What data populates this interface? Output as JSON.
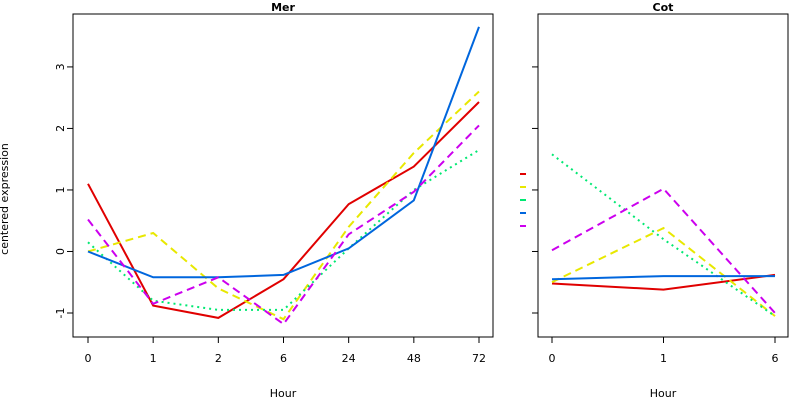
{
  "chart_data": {
    "type": "line",
    "ylabel": "centered expression",
    "ylim": [
      -1.35,
      3.85
    ],
    "yticks": [
      -1,
      0,
      1,
      2,
      3
    ],
    "ytick_labels": [
      "-1",
      "0",
      "1",
      "2",
      "3"
    ],
    "series_styles": [
      {
        "color": "#e00000",
        "dash": "solid",
        "width": 2
      },
      {
        "color": "#e8e800",
        "dash": "dashed",
        "width": 2
      },
      {
        "color": "#00e872",
        "dash": "dotted",
        "width": 2
      },
      {
        "color": "#0066dd",
        "dash": "solid",
        "width": 2
      },
      {
        "color": "#cc00ee",
        "dash": "dashed",
        "width": 2
      }
    ],
    "legend_colors": [
      "#e00000",
      "#e8e800",
      "#00e872",
      "#0066dd",
      "#cc00ee"
    ],
    "panels": [
      {
        "title": "Mer",
        "xlabel": "Hour",
        "categories": [
          "0",
          "1",
          "2",
          "6",
          "24",
          "48",
          "72"
        ],
        "series": [
          {
            "values": [
              1.1,
              -0.88,
              -1.08,
              -0.45,
              0.77,
              1.38,
              2.43
            ]
          },
          {
            "values": [
              0.0,
              0.3,
              -0.6,
              -1.1,
              0.4,
              1.6,
              2.6
            ]
          },
          {
            "values": [
              0.15,
              -0.8,
              -0.95,
              -0.95,
              0.05,
              1.0,
              1.65
            ]
          },
          {
            "values": [
              0.0,
              -0.42,
              -0.42,
              -0.38,
              0.05,
              0.83,
              3.65
            ]
          },
          {
            "values": [
              0.52,
              -0.85,
              -0.42,
              -1.18,
              0.28,
              0.97,
              2.05
            ]
          }
        ]
      },
      {
        "title": "Cot",
        "xlabel": "Hour",
        "categories": [
          "0",
          "1",
          "6"
        ],
        "series": [
          {
            "values": [
              -0.52,
              -0.62,
              -0.38
            ]
          },
          {
            "values": [
              -0.5,
              0.38,
              -1.05
            ]
          },
          {
            "values": [
              1.58,
              0.2,
              -1.05
            ]
          },
          {
            "values": [
              -0.45,
              -0.4,
              -0.4
            ]
          },
          {
            "values": [
              0.02,
              1.02,
              -1.0
            ]
          }
        ]
      }
    ]
  }
}
